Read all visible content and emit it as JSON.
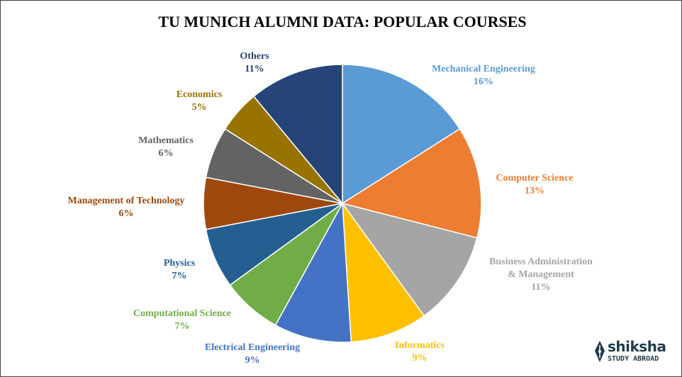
{
  "chart_data": {
    "type": "pie",
    "title": "TU MUNICH ALUMNI DATA:  POPULAR COURSES",
    "unit": "%",
    "slices": [
      {
        "label": "Mechanical Engineering",
        "value": 16,
        "value_label": "16%",
        "color": "#5B9BD5"
      },
      {
        "label": "Computer  Science",
        "value": 13,
        "value_label": "13%",
        "color": "#ED7D31"
      },
      {
        "label": "Business Administration & Management",
        "label_lines": [
          "Business Administration",
          "& Management"
        ],
        "value": 11,
        "value_label": "11%",
        "color": "#A5A5A5"
      },
      {
        "label": "Informatics",
        "value": 9,
        "value_label": "9%",
        "color": "#FFC000"
      },
      {
        "label": "Electrical  Engineering",
        "value": 9,
        "value_label": "9%",
        "color": "#4472C4"
      },
      {
        "label": "Computational   Science",
        "value": 7,
        "value_label": "7%",
        "color": "#70AD47"
      },
      {
        "label": "Physics",
        "value": 7,
        "value_label": "7%",
        "color": "#255E91"
      },
      {
        "label": "Management of Technology",
        "value": 6,
        "value_label": "6%",
        "color": "#9E480E"
      },
      {
        "label": "Mathematics",
        "value": 6,
        "value_label": "6%",
        "color": "#636363"
      },
      {
        "label": "Economics",
        "value": 5,
        "value_label": "5%",
        "color": "#997300"
      },
      {
        "label": "Others",
        "value": 11,
        "value_label": "11%",
        "color": "#264478"
      }
    ]
  },
  "logo": {
    "brand": "shiksha",
    "tagline": "STUDY ABROAD",
    "icon": "pen-nib-icon"
  }
}
